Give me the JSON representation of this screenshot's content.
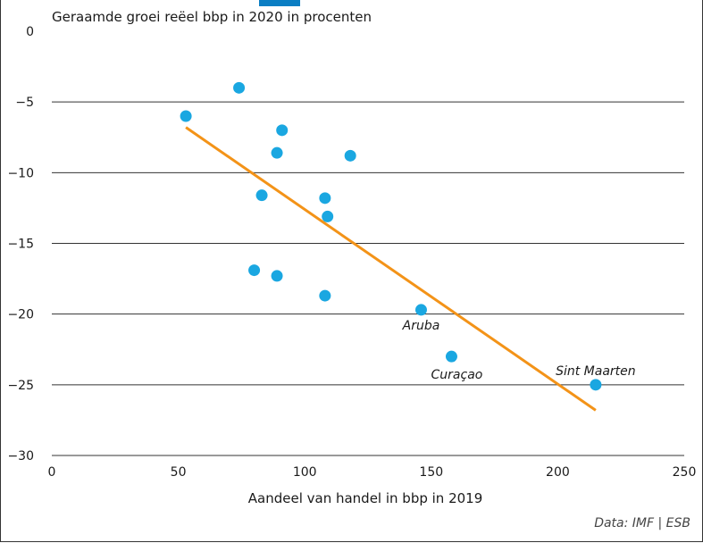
{
  "chart_data": {
    "type": "scatter",
    "title": "",
    "ylabel": "Geraamde groei reëel bbp in 2020 in procenten",
    "xlabel": "Aandeel van handel in bbp in 2019",
    "xlim": [
      0,
      250
    ],
    "ylim": [
      -30,
      0
    ],
    "x_ticks": [
      0,
      50,
      100,
      150,
      200,
      250
    ],
    "y_ticks": [
      0,
      -5,
      -10,
      -15,
      -20,
      -25,
      -30
    ],
    "y_tick_labels": [
      "0",
      "−5",
      "−10",
      "−15",
      "−20",
      "−25",
      "−30"
    ],
    "grid": "horizontal",
    "point_color": "#1aa7e1",
    "line_color": "#f39318",
    "points": [
      {
        "x": 53,
        "y": -6.0,
        "label": ""
      },
      {
        "x": 74,
        "y": -4.0,
        "label": ""
      },
      {
        "x": 91,
        "y": -7.0,
        "label": ""
      },
      {
        "x": 89,
        "y": -8.6,
        "label": ""
      },
      {
        "x": 118,
        "y": -8.8,
        "label": ""
      },
      {
        "x": 83,
        "y": -11.6,
        "label": ""
      },
      {
        "x": 108,
        "y": -11.8,
        "label": ""
      },
      {
        "x": 109,
        "y": -13.1,
        "label": ""
      },
      {
        "x": 80,
        "y": -16.9,
        "label": ""
      },
      {
        "x": 89,
        "y": -17.3,
        "label": ""
      },
      {
        "x": 108,
        "y": -18.7,
        "label": ""
      },
      {
        "x": 146,
        "y": -19.7,
        "label": "Aruba"
      },
      {
        "x": 158,
        "y": -23.0,
        "label": "Curaçao"
      },
      {
        "x": 215,
        "y": -25.0,
        "label": "Sint Maarten"
      }
    ],
    "trendline": {
      "x": [
        53,
        215
      ],
      "y": [
        -6.8,
        -26.8
      ]
    }
  },
  "source": "Data: IMF | ESB"
}
